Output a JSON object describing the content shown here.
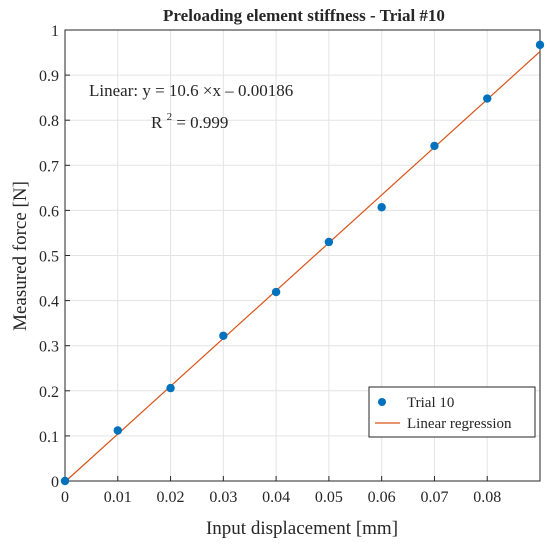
{
  "chart_data": {
    "type": "scatter",
    "title": "Preloading element stiffness - Trial #10",
    "xlabel": "Input displacement [mm]",
    "ylabel": "Measured force [N]",
    "xlim": [
      0,
      0.09
    ],
    "ylim": [
      0,
      1
    ],
    "xticks": [
      0,
      0.01,
      0.02,
      0.03,
      0.04,
      0.05,
      0.06,
      0.07,
      0.08
    ],
    "xtick_labels": [
      "0",
      "0.01",
      "0.02",
      "0.03",
      "0.04",
      "0.05",
      "0.06",
      "0.07",
      "0.08"
    ],
    "yticks": [
      0,
      0.1,
      0.2,
      0.3,
      0.4,
      0.5,
      0.6,
      0.7,
      0.8,
      0.9,
      1
    ],
    "ytick_labels": [
      "0",
      "0.1",
      "0.2",
      "0.3",
      "0.4",
      "0.5",
      "0.6",
      "0.7",
      "0.8",
      "0.9",
      "1"
    ],
    "grid": true,
    "series": [
      {
        "name": "Trial 10",
        "kind": "scatter",
        "color": "#0072BD",
        "x": [
          0,
          0.01,
          0.02,
          0.03,
          0.04,
          0.05,
          0.06,
          0.07,
          0.08,
          0.09
        ],
        "y": [
          0.0,
          0.112,
          0.206,
          0.322,
          0.419,
          0.53,
          0.607,
          0.743,
          0.848,
          0.967
        ]
      },
      {
        "name": "Linear regression",
        "kind": "line",
        "color": "#D95319",
        "slope": 10.6,
        "intercept": -0.00186
      }
    ],
    "annotations": {
      "equation": "Linear:  y = 10.6 ×x – 0.00186",
      "r2_prefix": "R",
      "r2_sup": "2",
      "r2_value": " = 0.999"
    },
    "legend_position": "bottom-right"
  }
}
